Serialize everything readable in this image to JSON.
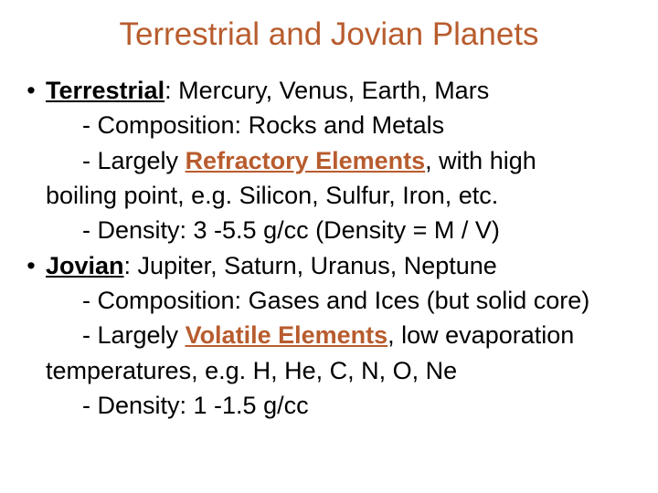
{
  "title": "Terrestrial and Jovian Planets",
  "colors": {
    "title": "#b85c2e",
    "highlight": "#b85c2e",
    "body": "#000000",
    "background": "#ffffff"
  },
  "typography": {
    "title_fontsize": 35,
    "body_fontsize": 27,
    "font_family": "Arial"
  },
  "terrestrial": {
    "label": "Terrestrial",
    "planets": ": Mercury, Venus, Earth, Mars",
    "composition": "-  Composition: Rocks and Metals",
    "elements_pre": "- Largely ",
    "elements_highlight": "Refractory Elements",
    "elements_post": ", with high",
    "elements_line2": "boiling point, e.g. Silicon, Sulfur, Iron, etc.",
    "density": "- Density: 3 -5.5 g/cc  (Density = M / V)"
  },
  "jovian": {
    "label": "Jovian",
    "planets": ": Jupiter, Saturn, Uranus, Neptune",
    "composition": "- Composition: Gases and Ices (but solid core)",
    "elements_pre": "- Largely ",
    "elements_highlight": "Volatile Elements",
    "elements_post": ", low evaporation",
    "elements_line2": "temperatures, e.g. H, He, C, N, O, Ne",
    "density": "- Density: 1 -1.5 g/cc"
  }
}
